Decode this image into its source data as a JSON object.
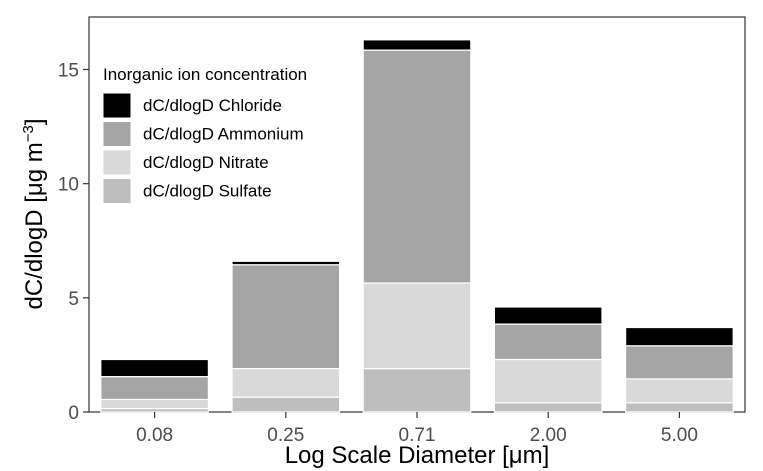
{
  "chart_data": {
    "type": "bar",
    "stacked": true,
    "categories": [
      "0.08",
      "0.25",
      "0.71",
      "2.00",
      "5.00"
    ],
    "xlabel": "Log Scale Diameter [μm]",
    "ylabel": "dC/dlogD [μg m",
    "ylabel_superscript": "−3",
    "ylabel_suffix": "]",
    "ylim": [
      0,
      17.3
    ],
    "yticks": [
      "0",
      "5",
      "10",
      "15"
    ],
    "grid": false,
    "legend": {
      "title": "Inorganic ion concentration",
      "position": "top-left",
      "entries": [
        "dC/dlogD Chloride",
        "dC/dlogD Ammonium",
        "dC/dlogD Nitrate",
        "dC/dlogD Sulfate"
      ]
    },
    "series": [
      {
        "name": "dC/dlogD Sulfate",
        "color": "#bebebe",
        "values": [
          0.15,
          0.65,
          1.9,
          0.4,
          0.4
        ]
      },
      {
        "name": "dC/dlogD Nitrate",
        "color": "#d9d9d9",
        "values": [
          0.4,
          1.25,
          3.75,
          1.9,
          1.05
        ]
      },
      {
        "name": "dC/dlogD Ammonium",
        "color": "#a5a5a5",
        "values": [
          1.0,
          4.55,
          10.2,
          1.55,
          1.45
        ]
      },
      {
        "name": "dC/dlogD Chloride",
        "color": "#000000",
        "values": [
          0.75,
          0.15,
          0.45,
          0.75,
          0.8
        ]
      }
    ]
  }
}
